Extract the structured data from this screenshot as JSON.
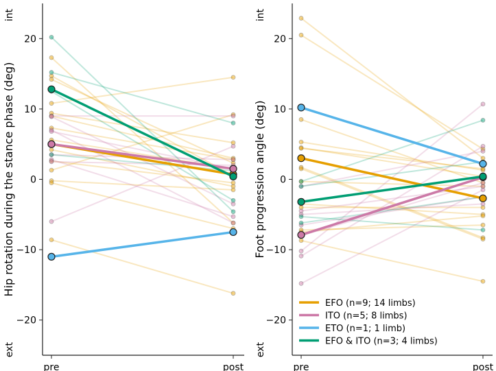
{
  "chart_data": [
    {
      "type": "line",
      "ylabel": "Hip rotation during the stance phase (deg)",
      "ylim": [
        -25,
        25
      ],
      "yticks": [
        -20,
        -10,
        0,
        10,
        20
      ],
      "xticks": [
        "pre",
        "post"
      ],
      "top_label": "int",
      "bottom_label": "ext",
      "grid": false,
      "groups": [
        {
          "key": "EFO",
          "color": "#E69F00",
          "mean": [
            5.0,
            0.7
          ],
          "limbs": [
            [
              17.3,
              -6.2
            ],
            [
              14.7,
              0.5
            ],
            [
              14.2,
              2.3
            ],
            [
              10.8,
              14.5
            ],
            [
              9.4,
              5.2
            ],
            [
              9.0,
              3.0
            ],
            [
              7.3,
              2.8
            ],
            [
              5.6,
              1.5
            ],
            [
              4.2,
              -1.0
            ],
            [
              2.6,
              -0.5
            ],
            [
              1.3,
              9.2
            ],
            [
              -0.2,
              -1.5
            ],
            [
              -0.5,
              -7.0
            ],
            [
              -8.6,
              -16.2
            ]
          ]
        },
        {
          "key": "ITO",
          "color": "#CC79A7",
          "mean": [
            5.0,
            1.5
          ],
          "limbs": [
            [
              9.0,
              9.0
            ],
            [
              8.9,
              -3.5
            ],
            [
              7.0,
              -6.2
            ],
            [
              6.8,
              1.5
            ],
            [
              3.5,
              2.8
            ],
            [
              2.8,
              -5.3
            ],
            [
              2.5,
              2.0
            ],
            [
              -6.0,
              4.7
            ]
          ]
        },
        {
          "key": "ETO",
          "color": "#56B4E9",
          "mean": [
            -11.0,
            -7.5
          ],
          "limbs": []
        },
        {
          "key": "EFO & ITO",
          "color": "#009E73",
          "mean": [
            12.8,
            0.4
          ],
          "limbs": [
            [
              20.2,
              -4.6
            ],
            [
              15.2,
              8.0
            ],
            [
              12.5,
              -3.0
            ],
            [
              3.5,
              1.2
            ]
          ]
        }
      ]
    },
    {
      "type": "line",
      "ylabel": "Foot progression angle (deg)",
      "ylim": [
        -25,
        25
      ],
      "yticks": [
        -20,
        -10,
        0,
        10,
        20
      ],
      "xticks": [
        "pre",
        "post"
      ],
      "top_label": "int",
      "bottom_label": "ext",
      "grid": false,
      "legend_position": "lower-left",
      "groups": [
        {
          "key": "EFO",
          "color": "#E69F00",
          "mean": [
            3.0,
            -2.7
          ],
          "limbs": [
            [
              22.9,
              3.0
            ],
            [
              20.5,
              4.3
            ],
            [
              8.5,
              -0.5
            ],
            [
              5.3,
              1.3
            ],
            [
              4.5,
              0.4
            ],
            [
              4.4,
              1.5
            ],
            [
              1.7,
              -8.3
            ],
            [
              1.5,
              -8.5
            ],
            [
              -0.3,
              -1.0
            ],
            [
              -3.5,
              -5.0
            ],
            [
              -4.0,
              -4.0
            ],
            [
              -7.2,
              -6.5
            ],
            [
              -7.5,
              -5.2
            ],
            [
              -8.7,
              -14.5
            ]
          ]
        },
        {
          "key": "ITO",
          "color": "#CC79A7",
          "mean": [
            -7.9,
            0.3
          ],
          "limbs": [
            [
              -14.8,
              -1.5
            ],
            [
              -10.9,
              4.7
            ],
            [
              -10.2,
              10.7
            ],
            [
              -8.0,
              -0.5
            ],
            [
              -6.5,
              -2.5
            ],
            [
              -5.0,
              -3.5
            ],
            [
              -4.5,
              -1.0
            ],
            [
              -1.0,
              4.0
            ]
          ]
        },
        {
          "key": "ETO",
          "color": "#56B4E9",
          "mean": [
            10.2,
            2.2
          ],
          "limbs": []
        },
        {
          "key": "EFO & ITO",
          "color": "#009E73",
          "mean": [
            -3.2,
            0.4
          ],
          "limbs": [
            [
              -0.3,
              8.4
            ],
            [
              -6.2,
              -2.5
            ],
            [
              -5.3,
              -7.2
            ],
            [
              -1.0,
              2.5
            ]
          ]
        }
      ]
    }
  ],
  "legend": [
    {
      "label": "EFO (n=9; 14 limbs)",
      "color": "#E69F00"
    },
    {
      "label": "ITO (n=5; 8 limbs)",
      "color": "#CC79A7"
    },
    {
      "label": "ETO (n=1; 1 limb)",
      "color": "#56B4E9"
    },
    {
      "label": "EFO & ITO (n=3; 4 limbs)",
      "color": "#009E73"
    }
  ]
}
